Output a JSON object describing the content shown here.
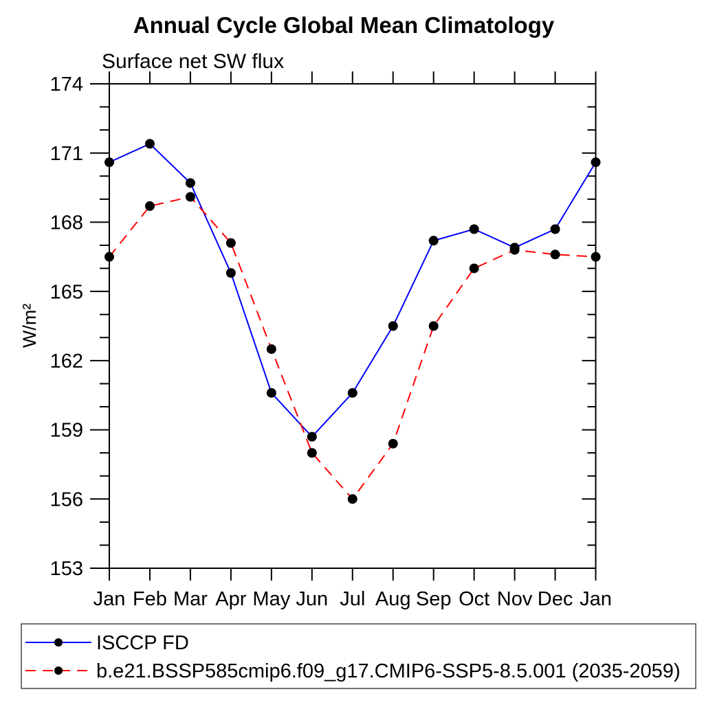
{
  "title": "Annual Cycle Global Mean Climatology",
  "subtitle": "Surface net SW flux",
  "chart_data": {
    "type": "line",
    "title": "Annual Cycle Global Mean Climatology",
    "subtitle": "Surface net SW flux",
    "ylabel": "W/m²",
    "xlabel": "",
    "categories": [
      "Jan",
      "Feb",
      "Mar",
      "Apr",
      "May",
      "Jun",
      "Jul",
      "Aug",
      "Sep",
      "Oct",
      "Nov",
      "Dec",
      "Jan"
    ],
    "series": [
      {
        "name": "ISCCP FD",
        "color": "#0000ff",
        "style": "solid",
        "marker": "filled-circle",
        "values": [
          170.6,
          171.4,
          169.7,
          165.8,
          160.6,
          158.7,
          160.6,
          163.5,
          167.2,
          167.7,
          166.9,
          167.7,
          170.6
        ]
      },
      {
        "name": "b.e21.BSSP585cmip6.f09_g17.CMIP6-SSP5-8.5.001 (2035-2059)",
        "color": "#ff0000",
        "style": "dashed",
        "marker": "filled-circle",
        "values": [
          166.5,
          168.7,
          169.1,
          167.1,
          162.5,
          158.0,
          156.0,
          158.4,
          163.5,
          166.0,
          166.8,
          166.6,
          166.5
        ]
      }
    ],
    "ylim": [
      153,
      174
    ],
    "y_major_ticks": [
      153,
      156,
      159,
      162,
      165,
      168,
      171,
      174
    ],
    "y_minor_step": 1,
    "marker_color": "#000000",
    "grid": false,
    "legend_position": "bottom"
  },
  "legend": {
    "border_color": "#444444"
  }
}
